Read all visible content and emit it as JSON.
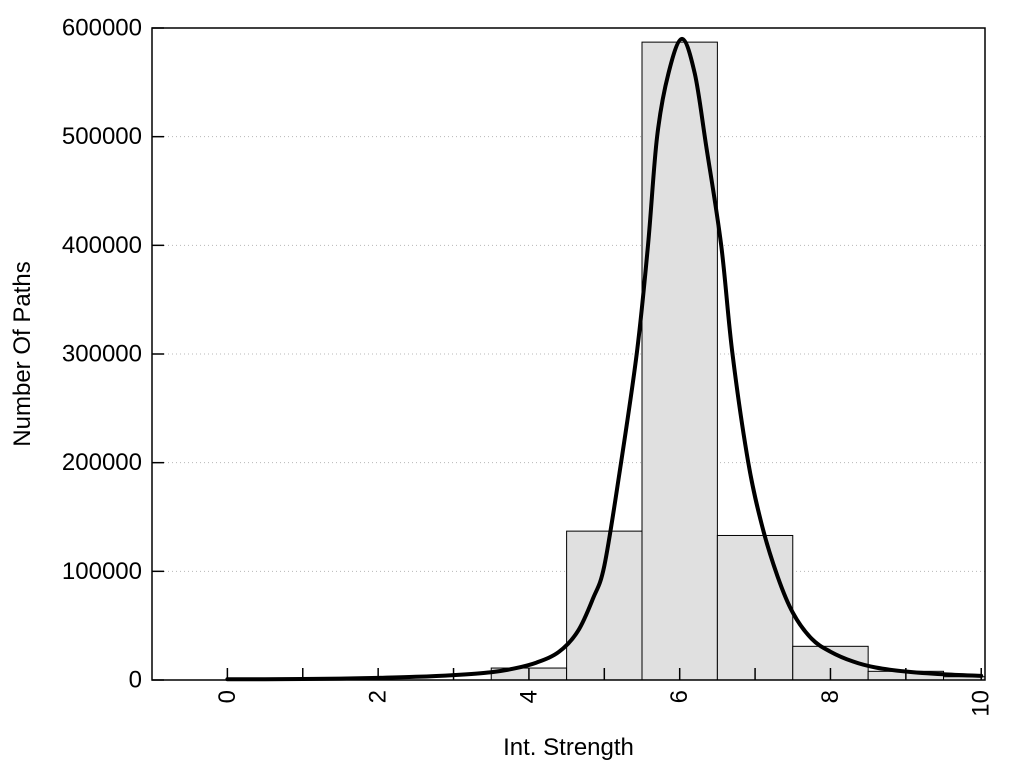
{
  "chart_data": {
    "type": "bar",
    "subtype": "histogram-with-fit-curve",
    "title": "",
    "xlabel": "Int. Strength",
    "ylabel": "Number Of Paths",
    "xlim": [
      -1,
      10.05
    ],
    "ylim": [
      0,
      600000
    ],
    "grid": "y-dotted",
    "legend_position": "none",
    "x_ticks": [
      {
        "value": 0,
        "label": "0"
      },
      {
        "value": 1,
        "label": ""
      },
      {
        "value": 2,
        "label": "2"
      },
      {
        "value": 3,
        "label": ""
      },
      {
        "value": 4,
        "label": "4"
      },
      {
        "value": 5,
        "label": ""
      },
      {
        "value": 6,
        "label": "6"
      },
      {
        "value": 7,
        "label": ""
      },
      {
        "value": 8,
        "label": "8"
      },
      {
        "value": 9,
        "label": ""
      },
      {
        "value": 10,
        "label": "10"
      }
    ],
    "y_ticks": [
      {
        "value": 0,
        "label": "0"
      },
      {
        "value": 100000,
        "label": "100000"
      },
      {
        "value": 200000,
        "label": "200000"
      },
      {
        "value": 300000,
        "label": "300000"
      },
      {
        "value": 400000,
        "label": "400000"
      },
      {
        "value": 500000,
        "label": "500000"
      },
      {
        "value": 600000,
        "label": "600000"
      }
    ],
    "histogram": {
      "bin_width": 1,
      "bin_centers": [
        0,
        1,
        2,
        3,
        4,
        5,
        6,
        7,
        8,
        9,
        10
      ],
      "counts": [
        0,
        0,
        0,
        0,
        11000,
        137000,
        587000,
        133000,
        31000,
        8000,
        3000
      ]
    },
    "fit_curve": {
      "name": "fitted-peak-curve",
      "points": [
        {
          "x": 0.0,
          "y": 600
        },
        {
          "x": 0.5,
          "y": 750
        },
        {
          "x": 1.0,
          "y": 950
        },
        {
          "x": 1.5,
          "y": 1300
        },
        {
          "x": 2.0,
          "y": 1900
        },
        {
          "x": 2.5,
          "y": 2900
        },
        {
          "x": 3.0,
          "y": 4500
        },
        {
          "x": 3.5,
          "y": 7200
        },
        {
          "x": 3.8,
          "y": 10500
        },
        {
          "x": 4.1,
          "y": 16000
        },
        {
          "x": 4.4,
          "y": 26000
        },
        {
          "x": 4.65,
          "y": 45000
        },
        {
          "x": 4.85,
          "y": 75000
        },
        {
          "x": 5.0,
          "y": 105000
        },
        {
          "x": 5.2,
          "y": 190000
        },
        {
          "x": 5.43,
          "y": 300000
        },
        {
          "x": 5.58,
          "y": 400000
        },
        {
          "x": 5.7,
          "y": 500000
        },
        {
          "x": 5.85,
          "y": 558000
        },
        {
          "x": 6.03,
          "y": 590000
        },
        {
          "x": 6.2,
          "y": 558000
        },
        {
          "x": 6.35,
          "y": 492000
        },
        {
          "x": 6.55,
          "y": 400000
        },
        {
          "x": 6.7,
          "y": 300000
        },
        {
          "x": 6.91,
          "y": 200000
        },
        {
          "x": 7.1,
          "y": 140000
        },
        {
          "x": 7.3,
          "y": 95000
        },
        {
          "x": 7.5,
          "y": 62000
        },
        {
          "x": 7.75,
          "y": 38000
        },
        {
          "x": 8.0,
          "y": 26000
        },
        {
          "x": 8.3,
          "y": 17000
        },
        {
          "x": 8.6,
          "y": 11500
        },
        {
          "x": 9.0,
          "y": 7800
        },
        {
          "x": 9.5,
          "y": 5200
        },
        {
          "x": 10.0,
          "y": 3800
        }
      ]
    },
    "colors": {
      "background": "#ffffff",
      "bar_fill": "#e0e0e0",
      "bar_stroke": "#000000",
      "curve": "#000000",
      "frame": "#000000",
      "gridline": "#b8b8b8",
      "text": "#000000"
    }
  }
}
